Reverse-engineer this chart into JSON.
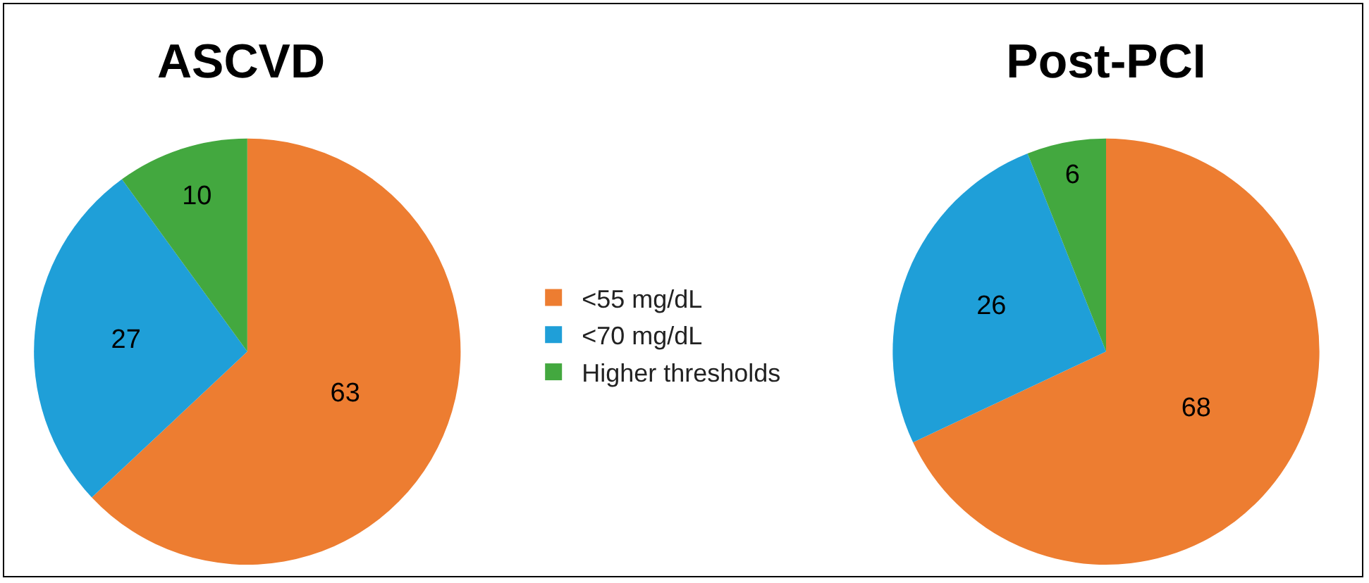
{
  "chart_data": [
    {
      "type": "pie",
      "title": "ASCVD",
      "categories": [
        "<55 mg/dL",
        "<70 mg/dL",
        "Higher thresholds"
      ],
      "values": [
        63,
        27,
        10
      ],
      "colors": [
        "#ed7d31",
        "#1f9fd8",
        "#43a83f"
      ],
      "data_labels": true,
      "legend": "right"
    },
    {
      "type": "pie",
      "title": "Post-PCI",
      "values": [
        68,
        26,
        6
      ],
      "colors": [
        "#ed7d31",
        "#1f9fd8",
        "#43a83f"
      ],
      "data_labels": true,
      "legend": false
    }
  ]
}
